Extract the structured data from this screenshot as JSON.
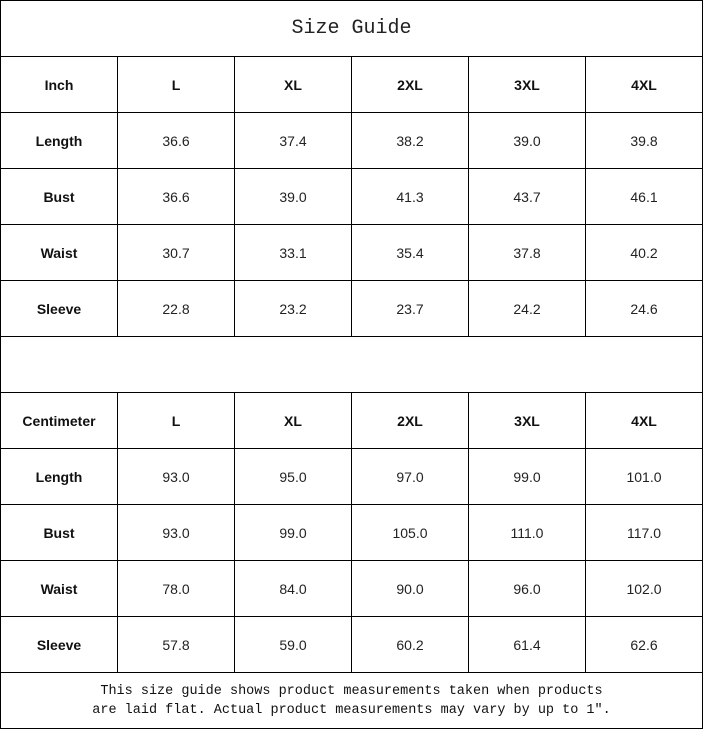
{
  "title": "Size Guide",
  "tables": [
    {
      "unit": "Inch",
      "sizes": [
        "L",
        "XL",
        "2XL",
        "3XL",
        "4XL"
      ],
      "rows": [
        {
          "label": "Length",
          "values": [
            "36.6",
            "37.4",
            "38.2",
            "39.0",
            "39.8"
          ]
        },
        {
          "label": "Bust",
          "values": [
            "36.6",
            "39.0",
            "41.3",
            "43.7",
            "46.1"
          ]
        },
        {
          "label": "Waist",
          "values": [
            "30.7",
            "33.1",
            "35.4",
            "37.8",
            "40.2"
          ]
        },
        {
          "label": "Sleeve",
          "values": [
            "22.8",
            "23.2",
            "23.7",
            "24.2",
            "24.6"
          ]
        }
      ]
    },
    {
      "unit": "Centimeter",
      "sizes": [
        "L",
        "XL",
        "2XL",
        "3XL",
        "4XL"
      ],
      "rows": [
        {
          "label": "Length",
          "values": [
            "93.0",
            "95.0",
            "97.0",
            "99.0",
            "101.0"
          ]
        },
        {
          "label": "Bust",
          "values": [
            "93.0",
            "99.0",
            "105.0",
            "111.0",
            "117.0"
          ]
        },
        {
          "label": "Waist",
          "values": [
            "78.0",
            "84.0",
            "90.0",
            "96.0",
            "102.0"
          ]
        },
        {
          "label": "Sleeve",
          "values": [
            "57.8",
            "59.0",
            "60.2",
            "61.4",
            "62.6"
          ]
        }
      ]
    }
  ],
  "note": {
    "line1": "This size guide shows product measurements taken when products",
    "line2": "are laid flat. Actual product measurements may vary by up to 1″."
  }
}
